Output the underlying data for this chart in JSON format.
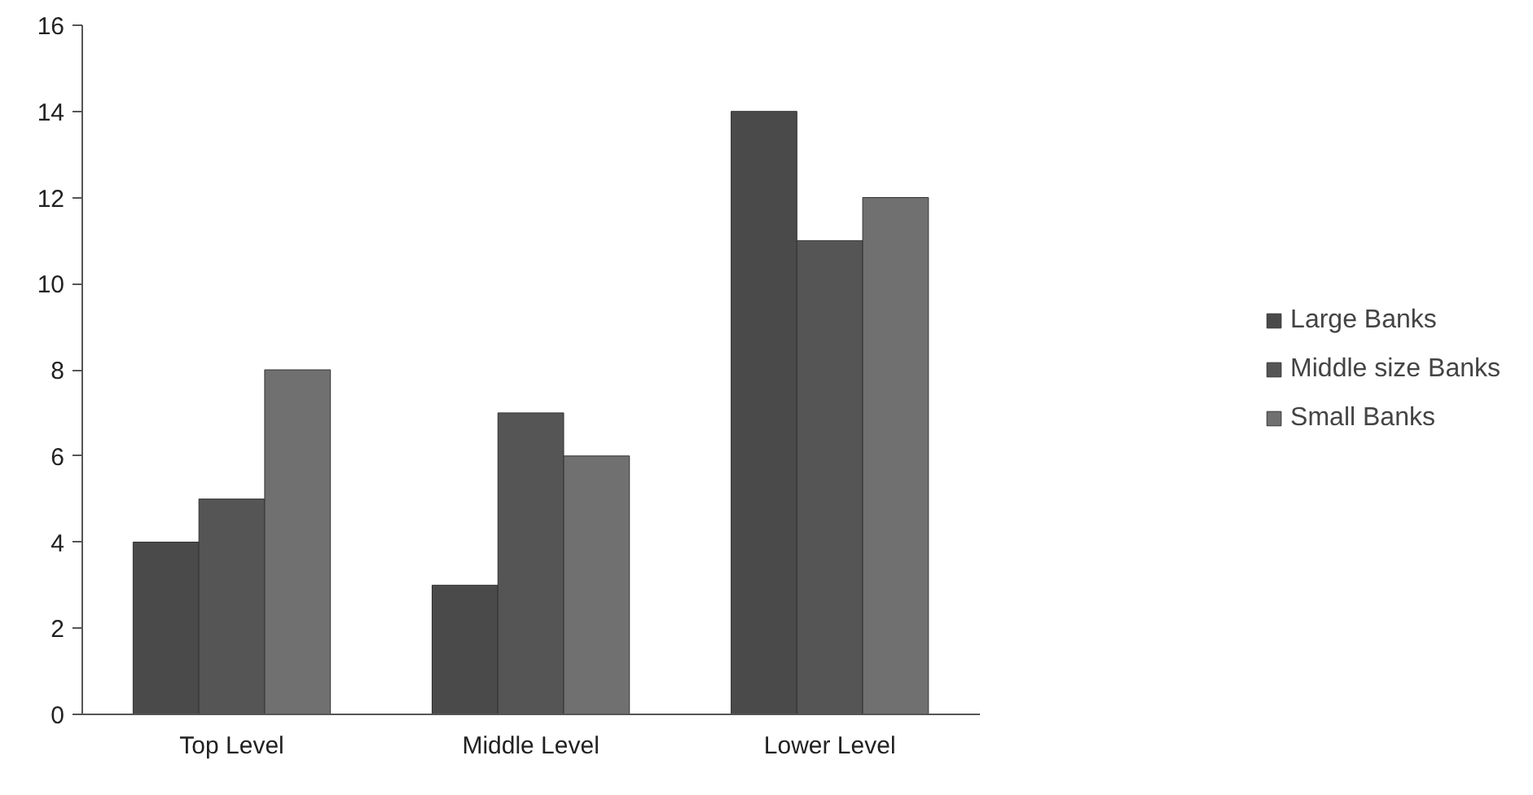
{
  "chart_data": {
    "type": "bar",
    "categories": [
      "Top Level",
      "Middle Level",
      "Lower Level"
    ],
    "series": [
      {
        "name": "Large Banks",
        "color": "#4a4a4a",
        "values": [
          4,
          3,
          14
        ]
      },
      {
        "name": "Middle size Banks",
        "color": "#555555",
        "values": [
          5,
          7,
          11
        ]
      },
      {
        "name": "Small Banks",
        "color": "#707070",
        "values": [
          8,
          6,
          12
        ]
      }
    ],
    "ylim": [
      0,
      16
    ],
    "yticks": [
      0,
      2,
      4,
      6,
      8,
      10,
      12,
      14,
      16
    ],
    "grid": false,
    "legend": "right"
  }
}
